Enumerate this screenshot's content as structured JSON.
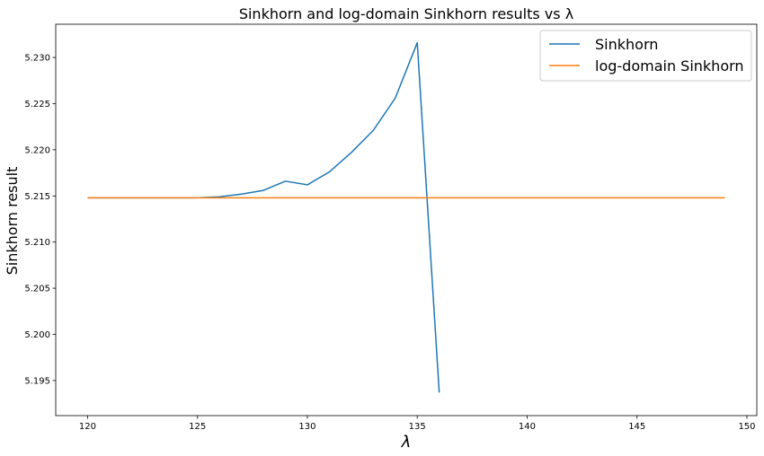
{
  "chart_data": {
    "type": "line",
    "title": "Sinkhorn and log-domain Sinkhorn results vs λ",
    "xlabel": "λ",
    "ylabel": "Sinkhorn result",
    "xlim": [
      118.55,
      150.45
    ],
    "ylim": [
      5.1912,
      5.2336
    ],
    "xticks": [
      120,
      125,
      130,
      135,
      140,
      145,
      150
    ],
    "yticks": [
      5.195,
      5.2,
      5.205,
      5.21,
      5.215,
      5.22,
      5.225,
      5.23
    ],
    "xtick_labels": [
      "120",
      "125",
      "130",
      "135",
      "140",
      "145",
      "150"
    ],
    "ytick_labels": [
      "5.195",
      "5.200",
      "5.205",
      "5.210",
      "5.215",
      "5.220",
      "5.225",
      "5.230"
    ],
    "grid": false,
    "legend_position": "top-right",
    "series": [
      {
        "name": "Sinkhorn",
        "color": "#1f77b4",
        "x": [
          120,
          121,
          122,
          123,
          124,
          125,
          126,
          127,
          128,
          129,
          130,
          131,
          132,
          133,
          134,
          135,
          136
        ],
        "y": [
          5.2148,
          5.2148,
          5.2148,
          5.2148,
          5.2148,
          5.2148,
          5.2149,
          5.2152,
          5.2156,
          5.2166,
          5.2162,
          5.2176,
          5.2197,
          5.2221,
          5.2256,
          5.2316,
          5.1937
        ]
      },
      {
        "name": "log-domain Sinkhorn",
        "color": "#ff7f0e",
        "x": [
          120,
          121,
          122,
          123,
          124,
          125,
          126,
          127,
          128,
          129,
          130,
          131,
          132,
          133,
          134,
          135,
          136,
          137,
          138,
          139,
          140,
          141,
          142,
          143,
          144,
          145,
          146,
          147,
          148,
          149
        ],
        "y": [
          5.2148,
          5.2148,
          5.2148,
          5.2148,
          5.2148,
          5.2148,
          5.2148,
          5.2148,
          5.2148,
          5.2148,
          5.2148,
          5.2148,
          5.2148,
          5.2148,
          5.2148,
          5.2148,
          5.2148,
          5.2148,
          5.2148,
          5.2148,
          5.2148,
          5.2148,
          5.2148,
          5.2148,
          5.2148,
          5.2148,
          5.2148,
          5.2148,
          5.2148,
          5.2148
        ]
      }
    ]
  }
}
